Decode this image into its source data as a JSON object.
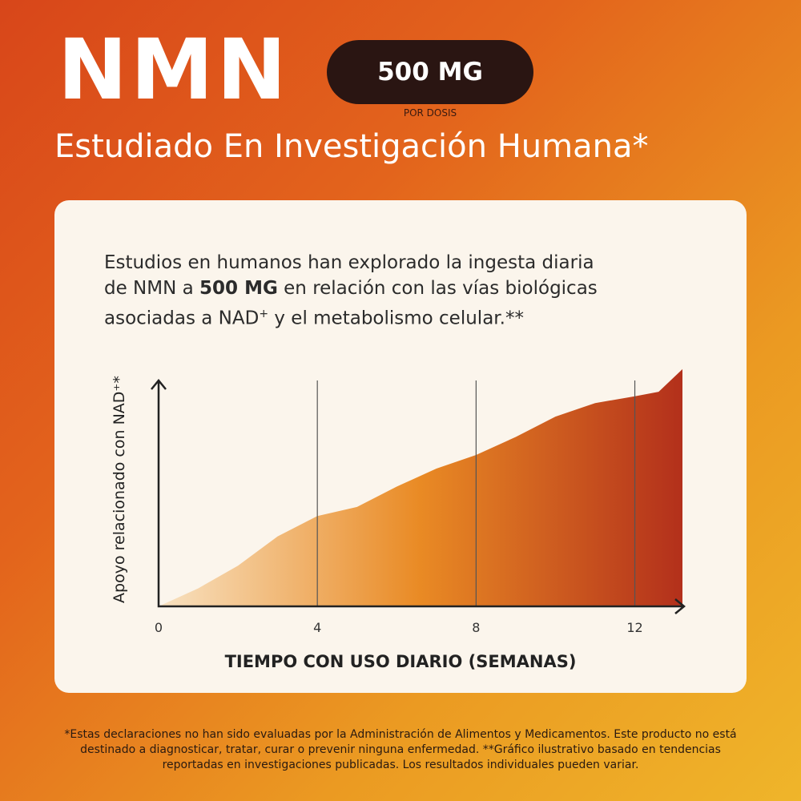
{
  "header": {
    "title": "NMN",
    "badge": "500 MG",
    "badge_note": "POR DOSIS",
    "subtitle": "Estudiado En Investigación Humana*"
  },
  "description": {
    "parts": [
      "Estudios en humanos han explorado la ingesta diaria de NMN a ",
      "500 MG",
      " en relación con las vías biológicas asociadas a NAD",
      "+",
      " y el metabolismo celular.**"
    ]
  },
  "chart_data": {
    "type": "area",
    "x": [
      0,
      1,
      2,
      3,
      4,
      5,
      6,
      7,
      8,
      9,
      10,
      11,
      12,
      12.6,
      13.2
    ],
    "values": [
      0,
      8,
      18,
      31,
      40,
      44,
      53,
      61,
      67,
      75,
      84,
      90,
      93,
      95,
      105
    ],
    "xlim": [
      0,
      13.2
    ],
    "ylim": [
      0,
      100
    ],
    "xticks": [
      0,
      4,
      8,
      12
    ],
    "xlabel": "TIEMPO CON USO DIARIO (SEMANAS)",
    "ylabel": "Apoyo relacionado con NAD⁺*",
    "grid": true,
    "colors": [
      "#f8e2c2",
      "#e98a24",
      "#b3301b"
    ]
  },
  "footnote": "*Estas declaraciones no han sido evaluadas por la Administración de Alimentos y Medicamentos. Este producto no está destinado a diagnosticar, tratar, curar o prevenir ninguna enfermedad. **Gráfico ilustrativo basado en tendencias reportadas en investigaciones publicadas. Los resultados individuales pueden variar."
}
